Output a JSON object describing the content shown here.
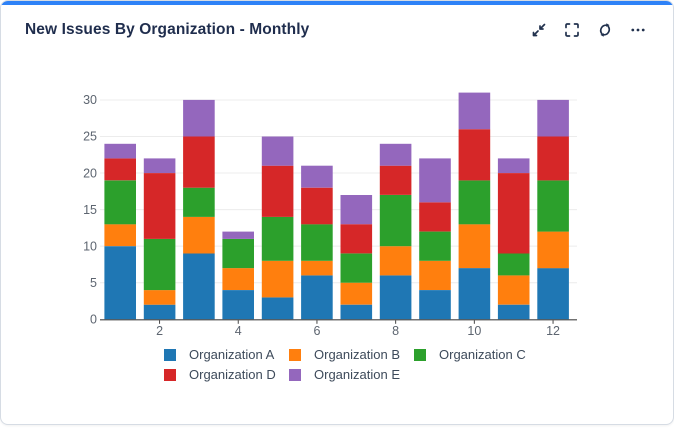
{
  "card": {
    "title": "New Issues By Organization - Monthly",
    "accent_color": "#2e82f7",
    "toolbar": {
      "collapse_label": "Collapse panel",
      "fullscreen_label": "Toggle fullscreen",
      "refresh_label": "Refresh",
      "more_label": "More options",
      "icons": [
        "collapse-icon",
        "fullscreen-icon",
        "refresh-icon",
        "ellipsis-icon"
      ]
    }
  },
  "chart_data": {
    "type": "bar",
    "stacked": true,
    "title": "New Issues By Organization - Monthly",
    "categories": [
      1,
      2,
      3,
      4,
      5,
      6,
      7,
      8,
      9,
      10,
      11,
      12
    ],
    "x_tick_labels": [
      "2",
      "4",
      "6",
      "8",
      "10",
      "12"
    ],
    "series": [
      {
        "name": "Organization A",
        "color": "#1f77b4",
        "values": [
          10,
          2,
          9,
          4,
          3,
          6,
          2,
          6,
          4,
          7,
          2,
          7
        ]
      },
      {
        "name": "Organization B",
        "color": "#ff7f0e",
        "values": [
          3,
          2,
          5,
          3,
          5,
          2,
          3,
          4,
          4,
          6,
          4,
          5
        ]
      },
      {
        "name": "Organization C",
        "color": "#2ca02c",
        "values": [
          6,
          7,
          4,
          4,
          6,
          5,
          4,
          7,
          4,
          6,
          3,
          7
        ]
      },
      {
        "name": "Organization D",
        "color": "#d62728",
        "values": [
          3,
          9,
          7,
          0,
          7,
          5,
          4,
          4,
          4,
          7,
          11,
          6
        ]
      },
      {
        "name": "Organization E",
        "color": "#9467bd",
        "values": [
          2,
          2,
          5,
          1,
          4,
          3,
          4,
          3,
          6,
          5,
          2,
          5
        ]
      }
    ],
    "totals": [
      24,
      22,
      30,
      12,
      25,
      21,
      17,
      24,
      22,
      31,
      22,
      30
    ],
    "ylim": [
      0,
      30
    ],
    "y_ticks": [
      0,
      5,
      10,
      15,
      20,
      25,
      30
    ],
    "grid": "horizontal",
    "gridline_color": "#ececec",
    "axis_line_color": "#444444",
    "axis_label_color": "#5d6570",
    "legend_position": "bottom"
  }
}
